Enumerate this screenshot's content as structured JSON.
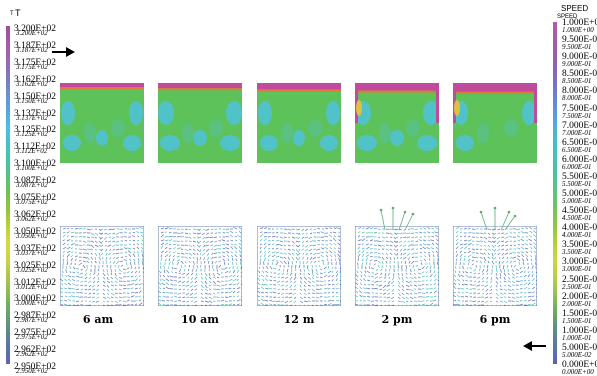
{
  "left_legend": {
    "title": "T",
    "title_small": "T",
    "ticks": [
      "3.200E+02",
      "3.187E+02",
      "3.175E+02",
      "3.162E+02",
      "3.150E+02",
      "3.137E+02",
      "3.125E+02",
      "3.112E+02",
      "3.100E+02",
      "3.087E+02",
      "3.075E+02",
      "3.062E+02",
      "3.050E+02",
      "3.037E+02",
      "3.025E+02",
      "3.012E+02",
      "3.000E+02",
      "2.987E+02",
      "2.975E+02",
      "2.962E+02",
      "2.950E+02"
    ],
    "colors": [
      "#9b4fa0",
      "#a45aa6",
      "#9a68b0",
      "#8078be",
      "#6a8fd0",
      "#52a7de",
      "#4fbde0",
      "#3fc3c6",
      "#44c5a2",
      "#58c37a",
      "#76c04e",
      "#98c53a",
      "#c2d23c",
      "#dad945",
      "#c8d04a",
      "#a6c44e",
      "#82b858",
      "#66a36a",
      "#5b8c86",
      "#5a73a5",
      "#5f63b8"
    ]
  },
  "right_legend": {
    "title": "SPEED",
    "title_small": "SPEED",
    "ticks": [
      "1.000E+00",
      "9.500E-01",
      "9.000E-01",
      "8.500E-01",
      "8.000E-01",
      "7.500E-01",
      "7.000E-01",
      "6.500E-01",
      "6.000E-01",
      "5.500E-01",
      "5.000E-01",
      "4.500E-01",
      "4.000E-01",
      "3.500E-01",
      "3.000E-01",
      "2.500E-01",
      "2.000E-01",
      "1.500E-01",
      "1.000E-01",
      "5.000E-02",
      "0.000E+00"
    ],
    "colors": [
      "#b65aa8",
      "#a65ba8",
      "#955fae",
      "#8468b6",
      "#6d7bc4",
      "#5b94d2",
      "#4fadd8",
      "#45bdd0",
      "#42c4b6",
      "#4ac49a",
      "#5bc47a",
      "#76c458",
      "#94c83e",
      "#b6d03a",
      "#cdd63c",
      "#b4cf45",
      "#8fbf52",
      "#6aa962",
      "#5a8f80",
      "#5977a4",
      "#5a62b8"
    ]
  },
  "panels": [
    {
      "time": "6 am"
    },
    {
      "time": "10 am"
    },
    {
      "time": "12 m"
    },
    {
      "time": "2 pm"
    },
    {
      "time": "6 pm"
    }
  ],
  "arrows": {
    "left": "right-arrow",
    "right": "left-arrow"
  }
}
